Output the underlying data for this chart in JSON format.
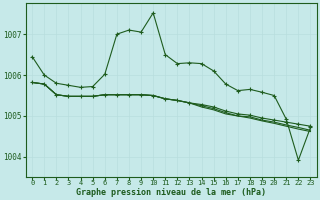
{
  "background_color": "#c6e9e9",
  "grid_color_major": "#b8dede",
  "grid_color_minor": "#d4eeee",
  "line_color": "#1e5c1e",
  "text_color": "#1e5c1e",
  "xlabel": "Graphe pression niveau de la mer (hPa)",
  "ylim": [
    1003.5,
    1007.75
  ],
  "xlim": [
    -0.5,
    23.5
  ],
  "yticks": [
    1004,
    1005,
    1006,
    1007
  ],
  "xticks": [
    0,
    1,
    2,
    3,
    4,
    5,
    6,
    7,
    8,
    9,
    10,
    11,
    12,
    13,
    14,
    15,
    16,
    17,
    18,
    19,
    20,
    21,
    22,
    23
  ],
  "series": [
    {
      "y": [
        1006.45,
        1006.0,
        1005.8,
        1005.75,
        1005.7,
        1005.72,
        1006.02,
        1007.0,
        1007.1,
        1007.05,
        1007.52,
        1006.5,
        1006.28,
        1006.3,
        1006.28,
        1006.1,
        1005.78,
        1005.62,
        1005.65,
        1005.58,
        1005.5,
        1004.92,
        1003.92,
        1004.72
      ],
      "has_markers": true
    },
    {
      "y": [
        1005.82,
        1005.78,
        1005.52,
        1005.48,
        1005.48,
        1005.48,
        1005.52,
        1005.52,
        1005.52,
        1005.52,
        1005.5,
        1005.42,
        1005.38,
        1005.32,
        1005.28,
        1005.22,
        1005.12,
        1005.05,
        1005.02,
        1004.95,
        1004.9,
        1004.85,
        1004.8,
        1004.75
      ],
      "has_markers": true
    },
    {
      "y": [
        1005.82,
        1005.78,
        1005.52,
        1005.48,
        1005.48,
        1005.48,
        1005.52,
        1005.52,
        1005.52,
        1005.52,
        1005.5,
        1005.42,
        1005.38,
        1005.32,
        1005.22,
        1005.15,
        1005.05,
        1005.0,
        1004.95,
        1004.88,
        1004.82,
        1004.75,
        1004.68,
        1004.62
      ],
      "has_markers": false
    },
    {
      "y": [
        1005.82,
        1005.78,
        1005.52,
        1005.48,
        1005.48,
        1005.48,
        1005.52,
        1005.52,
        1005.52,
        1005.52,
        1005.5,
        1005.42,
        1005.38,
        1005.32,
        1005.25,
        1005.18,
        1005.08,
        1005.0,
        1004.98,
        1004.9,
        1004.85,
        1004.78,
        1004.72,
        1004.65
      ],
      "has_markers": false
    }
  ],
  "marker": "+",
  "marker_size": 3,
  "line_width": 0.8
}
